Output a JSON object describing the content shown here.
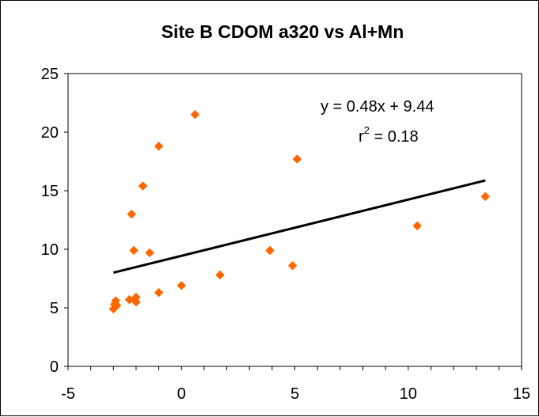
{
  "chart_data": {
    "type": "scatter",
    "title": "Site B CDOM a320 vs Al+Mn",
    "xlabel": "",
    "ylabel": "",
    "xlim": [
      -5,
      15
    ],
    "ylim": [
      0,
      25
    ],
    "x_ticks": [
      -5,
      0,
      5,
      10,
      15
    ],
    "y_ticks": [
      0,
      5,
      10,
      15,
      20,
      25
    ],
    "x_minor_step": 1,
    "grid": false,
    "legend": "none",
    "marker_color": "#FF6600",
    "marker_shape": "diamond",
    "line_color": "#000000",
    "series": [
      {
        "points": [
          {
            "x": -3.0,
            "y": 4.9
          },
          {
            "x": -2.95,
            "y": 5.3
          },
          {
            "x": -2.9,
            "y": 5.6
          },
          {
            "x": -2.85,
            "y": 5.2
          },
          {
            "x": -2.3,
            "y": 5.7
          },
          {
            "x": -2.2,
            "y": 13.0
          },
          {
            "x": -2.1,
            "y": 9.9
          },
          {
            "x": -2.0,
            "y": 5.9
          },
          {
            "x": -2.0,
            "y": 5.5
          },
          {
            "x": -1.7,
            "y": 15.4
          },
          {
            "x": -1.4,
            "y": 9.7
          },
          {
            "x": -1.0,
            "y": 18.8
          },
          {
            "x": -1.0,
            "y": 6.3
          },
          {
            "x": 0.0,
            "y": 6.9
          },
          {
            "x": 0.6,
            "y": 21.5
          },
          {
            "x": 1.7,
            "y": 7.8
          },
          {
            "x": 3.9,
            "y": 9.9
          },
          {
            "x": 4.9,
            "y": 8.6
          },
          {
            "x": 5.1,
            "y": 17.7
          },
          {
            "x": 10.4,
            "y": 12.0
          },
          {
            "x": 13.4,
            "y": 14.5
          }
        ]
      }
    ],
    "trendline": {
      "slope": 0.48,
      "intercept": 9.44,
      "x_range": [
        -3.0,
        13.4
      ]
    },
    "annotations": {
      "equation": "y = 0.48x + 9.44",
      "r2_base": "r",
      "r2_sup": "2",
      "r2_rest": " = 0.18"
    }
  }
}
